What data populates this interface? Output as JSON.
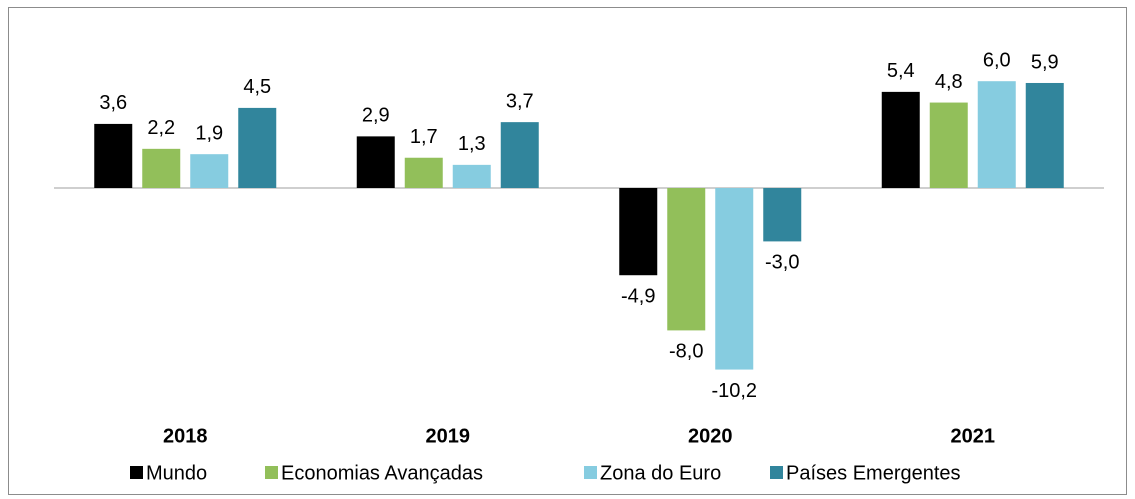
{
  "chart_data": {
    "type": "bar",
    "categories": [
      "2018",
      "2019",
      "2020",
      "2021"
    ],
    "series": [
      {
        "name": "Mundo",
        "color": "#000000",
        "values": [
          3.6,
          2.9,
          -4.9,
          5.4
        ],
        "value_labels": [
          "3,6",
          "2,9",
          "-4,9",
          "5,4"
        ]
      },
      {
        "name": "Economias Avançadas",
        "color": "#92bf5a",
        "values": [
          2.2,
          1.7,
          -8.0,
          4.8
        ],
        "value_labels": [
          "2,2",
          "1,7",
          "-8,0",
          "4,8"
        ]
      },
      {
        "name": "Zona do Euro",
        "color": "#86cce0",
        "values": [
          1.9,
          1.3,
          -10.2,
          6.0
        ],
        "value_labels": [
          "1,9",
          "1,3",
          "-10,2",
          "6,0"
        ]
      },
      {
        "name": "Países Emergentes",
        "color": "#31859c",
        "values": [
          4.5,
          3.7,
          -3.0,
          5.9
        ],
        "value_labels": [
          "4,5",
          "3,7",
          "-3,0",
          "5,9"
        ]
      }
    ]
  }
}
